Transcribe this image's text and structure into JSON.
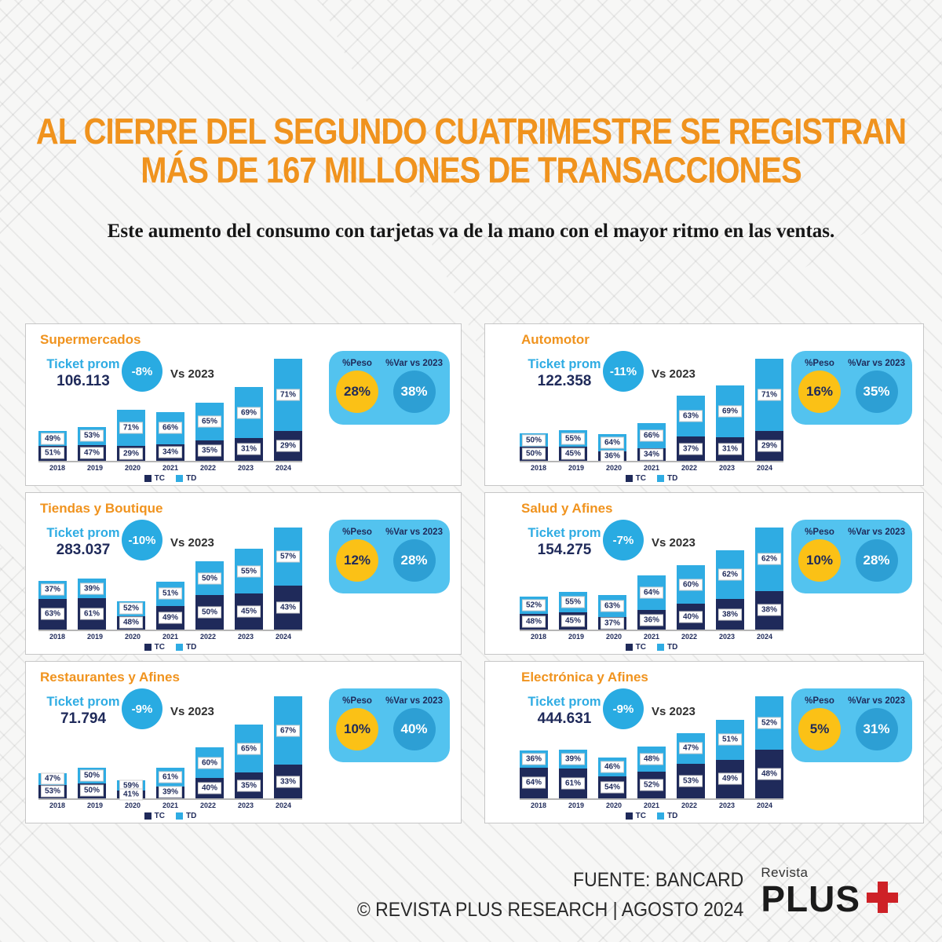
{
  "page": {
    "title_line1": "AL CIERRE DEL SEGUNDO CUATRIMESTRE SE REGISTRAN",
    "title_line2": "MÁS DE 167 MILLONES DE TRANSACCIONES",
    "subtitle": "Este aumento del consumo con tarjetas va de la mano con el mayor ritmo en las ventas."
  },
  "labels": {
    "ticket_prom": "Ticket prom",
    "vs_2023": "Vs 2023",
    "peso": "%Peso",
    "var_vs_2023": "%Var vs 2023"
  },
  "footer": {
    "source_line": "FUENTE: BANCARD",
    "credit_line": "© REVISTA PLUS RESEARCH | AGOSTO 2024",
    "logo_revista": "Revista",
    "logo_plus": "PLUS"
  },
  "colors": {
    "accent_orange": "#F0931E",
    "navy_tc": "#1F2A5A",
    "light_blue_td": "#2FACE3",
    "badge_blue": "#29ABE2",
    "card_blue": "#53C3EF",
    "var_circle_blue": "#2D9FD4",
    "peso_yellow": "#FBC116",
    "logo_red": "#CE2127"
  },
  "chart_data": [
    {
      "type": "stacked-bar",
      "title": "Supermercados",
      "ticket_prom": "106.113",
      "vs_change": "-8%",
      "peso": "28%",
      "var": "38%",
      "categories": [
        "2018",
        "2019",
        "2020",
        "2021",
        "2022",
        "2023",
        "2024"
      ],
      "series": [
        {
          "name": "TC",
          "values": [
            51,
            47,
            29,
            34,
            35,
            31,
            29
          ]
        },
        {
          "name": "TD",
          "values": [
            49,
            53,
            71,
            66,
            65,
            69,
            71
          ]
        }
      ],
      "total_height_pct": [
        29,
        33,
        50,
        48,
        57,
        72,
        100
      ]
    },
    {
      "type": "stacked-bar",
      "title": "Automotor",
      "ticket_prom": "122.358",
      "vs_change": "-11%",
      "peso": "16%",
      "var": "35%",
      "categories": [
        "2018",
        "2019",
        "2020",
        "2021",
        "2022",
        "2023",
        "2024"
      ],
      "series": [
        {
          "name": "TC",
          "values": [
            50,
            45,
            36,
            34,
            37,
            31,
            29
          ]
        },
        {
          "name": "TD",
          "values": [
            50,
            55,
            64,
            66,
            63,
            69,
            71
          ]
        }
      ],
      "total_height_pct": [
        27,
        30,
        26,
        37,
        64,
        74,
        100
      ]
    },
    {
      "type": "stacked-bar",
      "title": "Tiendas y Boutique",
      "ticket_prom": "283.037",
      "vs_change": "-10%",
      "peso": "12%",
      "var": "28%",
      "categories": [
        "2018",
        "2019",
        "2020",
        "2021",
        "2022",
        "2023",
        "2024"
      ],
      "series": [
        {
          "name": "TC",
          "values": [
            63,
            61,
            48,
            49,
            50,
            45,
            43
          ]
        },
        {
          "name": "TD",
          "values": [
            37,
            39,
            52,
            51,
            50,
            55,
            57
          ]
        }
      ],
      "total_height_pct": [
        48,
        50,
        28,
        47,
        67,
        79,
        100
      ]
    },
    {
      "type": "stacked-bar",
      "title": "Salud y Afines",
      "ticket_prom": "154.275",
      "vs_change": "-7%",
      "peso": "10%",
      "var": "28%",
      "categories": [
        "2018",
        "2019",
        "2020",
        "2021",
        "2022",
        "2023",
        "2024"
      ],
      "series": [
        {
          "name": "TC",
          "values": [
            48,
            45,
            37,
            36,
            40,
            38,
            38
          ]
        },
        {
          "name": "TD",
          "values": [
            52,
            55,
            63,
            64,
            60,
            62,
            62
          ]
        }
      ],
      "total_height_pct": [
        32,
        37,
        34,
        53,
        63,
        78,
        100
      ]
    },
    {
      "type": "stacked-bar",
      "title": "Restaurantes y Afines",
      "ticket_prom": "71.794",
      "vs_change": "-9%",
      "peso": "10%",
      "var": "40%",
      "categories": [
        "2018",
        "2019",
        "2020",
        "2021",
        "2022",
        "2023",
        "2024"
      ],
      "series": [
        {
          "name": "TC",
          "values": [
            53,
            50,
            41,
            39,
            40,
            35,
            33
          ]
        },
        {
          "name": "TD",
          "values": [
            47,
            50,
            59,
            61,
            60,
            65,
            67
          ]
        }
      ],
      "total_height_pct": [
        25,
        30,
        18,
        30,
        50,
        72,
        100
      ]
    },
    {
      "type": "stacked-bar",
      "title": "Electrónica y Afines",
      "ticket_prom": "444.631",
      "vs_change": "-9%",
      "peso": "5%",
      "var": "31%",
      "categories": [
        "2018",
        "2019",
        "2020",
        "2021",
        "2022",
        "2023",
        "2024"
      ],
      "series": [
        {
          "name": "TC",
          "values": [
            64,
            61,
            54,
            52,
            53,
            49,
            48
          ]
        },
        {
          "name": "TD",
          "values": [
            36,
            39,
            46,
            48,
            47,
            51,
            52
          ]
        }
      ],
      "total_height_pct": [
        47,
        48,
        40,
        51,
        64,
        77,
        100
      ]
    }
  ]
}
